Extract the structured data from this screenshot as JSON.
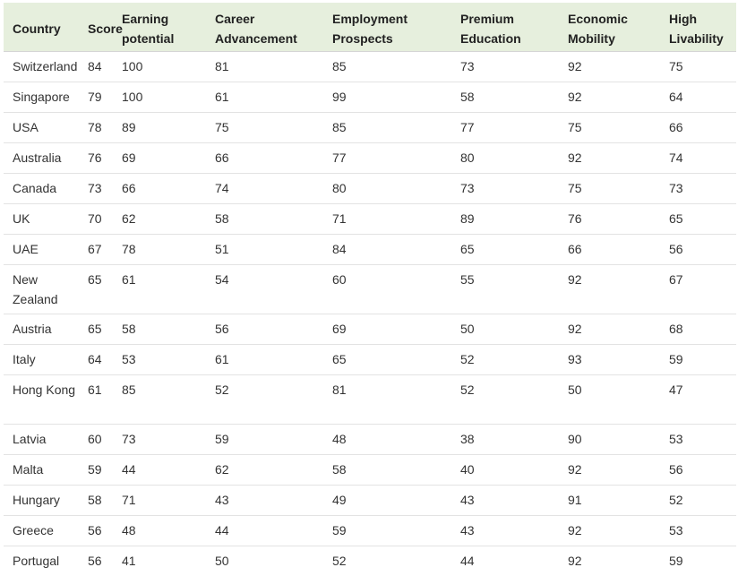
{
  "table": {
    "headers": [
      "Country",
      "Score",
      "Earning potential",
      "Career Advancement",
      "Employment Prospects",
      "Premium Education",
      "Economic Mobility",
      "High Livability"
    ],
    "rows": [
      [
        "Switzerland",
        "84",
        "100",
        "81",
        "85",
        "73",
        "92",
        "75"
      ],
      [
        "Singapore",
        "79",
        "100",
        "61",
        "99",
        "58",
        "92",
        "64"
      ],
      [
        "USA",
        "78",
        "89",
        "75",
        "85",
        "77",
        "75",
        "66"
      ],
      [
        "Australia",
        "76",
        "69",
        "66",
        "77",
        "80",
        "92",
        "74"
      ],
      [
        "Canada",
        "73",
        "66",
        "74",
        "80",
        "73",
        "75",
        "73"
      ],
      [
        "UK",
        "70",
        "62",
        "58",
        "71",
        "89",
        "76",
        "65"
      ],
      [
        "UAE",
        "67",
        "78",
        "51",
        "84",
        "65",
        "66",
        "56"
      ],
      [
        "New Zealand",
        "65",
        "61",
        "54",
        "60",
        "55",
        "92",
        "67"
      ],
      [
        "Austria",
        "65",
        "58",
        "56",
        "69",
        "50",
        "92",
        "68"
      ],
      [
        "Italy",
        "64",
        "53",
        "61",
        "65",
        "52",
        "93",
        "59"
      ],
      [
        "Hong Kong",
        "61",
        "85",
        "52",
        "81",
        "52",
        "50",
        "47"
      ],
      [
        "Latvia",
        "60",
        "73",
        "59",
        "48",
        "38",
        "90",
        "53"
      ],
      [
        "Malta",
        "59",
        "44",
        "62",
        "58",
        "40",
        "92",
        "56"
      ],
      [
        "Hungary",
        "58",
        "71",
        "43",
        "49",
        "43",
        "91",
        "52"
      ],
      [
        "Greece",
        "56",
        "48",
        "44",
        "59",
        "43",
        "92",
        "53"
      ],
      [
        "Portugal",
        "56",
        "41",
        "50",
        "52",
        "44",
        "92",
        "59"
      ]
    ]
  },
  "colors": {
    "header_background": "#e6efdd",
    "row_divider": "#e3e3e3",
    "text": "#333333"
  }
}
